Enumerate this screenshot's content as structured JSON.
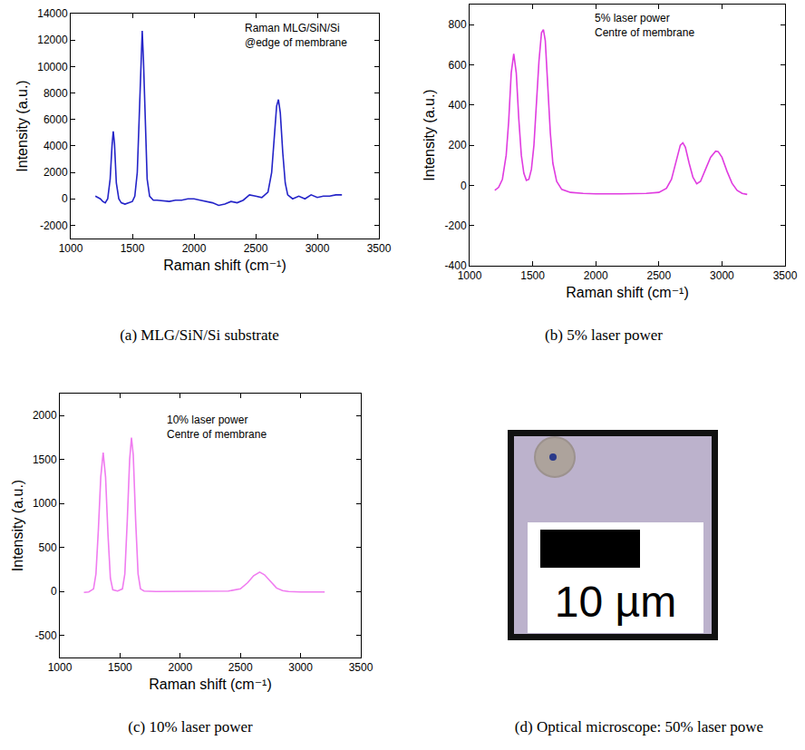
{
  "chart_data": [
    {
      "type": "line",
      "caption": "(a) MLG/SiN/Si substrate",
      "annotations": [
        "Raman MLG/SiN/Si",
        "@edge of membrane"
      ],
      "x_label": "Raman shift (cm⁻¹)",
      "y_label": "Intensity (a.u.)",
      "xlim": [
        1000,
        3500
      ],
      "xticks": [
        1000,
        1500,
        2000,
        2500,
        3000,
        3500
      ],
      "ylim": [
        -3000,
        14000
      ],
      "yticks": [
        -2000,
        0,
        2000,
        4000,
        6000,
        8000,
        10000,
        12000,
        14000
      ],
      "grid": false,
      "color": "#2424c8",
      "x": [
        1200,
        1220,
        1240,
        1260,
        1280,
        1300,
        1320,
        1335,
        1345,
        1355,
        1370,
        1390,
        1410,
        1440,
        1470,
        1500,
        1520,
        1540,
        1555,
        1570,
        1580,
        1590,
        1605,
        1620,
        1640,
        1670,
        1700,
        1750,
        1800,
        1850,
        1900,
        1950,
        2000,
        2050,
        2100,
        2150,
        2200,
        2250,
        2300,
        2350,
        2400,
        2450,
        2500,
        2550,
        2600,
        2630,
        2650,
        2670,
        2685,
        2700,
        2720,
        2740,
        2760,
        2800,
        2850,
        2900,
        2950,
        3000,
        3050,
        3100,
        3150,
        3200
      ],
      "values": [
        200,
        100,
        0,
        -200,
        -300,
        0,
        1500,
        4000,
        5100,
        4200,
        1200,
        0,
        -300,
        -400,
        -300,
        -200,
        200,
        2000,
        6000,
        11000,
        12700,
        10500,
        5000,
        1500,
        200,
        -100,
        -100,
        -150,
        -200,
        -100,
        -100,
        0,
        0,
        -100,
        -200,
        -300,
        -500,
        -400,
        -200,
        -300,
        -100,
        300,
        200,
        100,
        500,
        2000,
        4500,
        7000,
        7500,
        6500,
        3500,
        1200,
        300,
        0,
        200,
        0,
        300,
        100,
        200,
        200,
        300,
        300
      ]
    },
    {
      "type": "line",
      "caption": "(b) 5% laser power",
      "annotations": [
        "5% laser power",
        "Centre of membrane"
      ],
      "x_label": "Raman shift (cm⁻¹)",
      "y_label": "Intensity (a.u.)",
      "xlim": [
        1000,
        3500
      ],
      "xticks": [
        1000,
        1500,
        2000,
        2500,
        3000,
        3500
      ],
      "ylim": [
        -400,
        900
      ],
      "yticks": [
        -400,
        -200,
        0,
        200,
        400,
        600,
        800
      ],
      "grid": false,
      "color": "#e03ce0",
      "x": [
        1200,
        1230,
        1260,
        1290,
        1310,
        1330,
        1350,
        1370,
        1390,
        1410,
        1430,
        1450,
        1470,
        1490,
        1510,
        1530,
        1550,
        1570,
        1585,
        1600,
        1620,
        1640,
        1660,
        1690,
        1730,
        1800,
        1900,
        2000,
        2200,
        2400,
        2500,
        2560,
        2600,
        2640,
        2670,
        2690,
        2710,
        2740,
        2770,
        2800,
        2830,
        2870,
        2910,
        2950,
        2970,
        3000,
        3040,
        3080,
        3120,
        3160,
        3200
      ],
      "values": [
        -25,
        -10,
        30,
        150,
        320,
        560,
        655,
        560,
        330,
        150,
        60,
        25,
        30,
        80,
        200,
        400,
        620,
        760,
        775,
        720,
        500,
        260,
        110,
        20,
        -20,
        -35,
        -40,
        -42,
        -42,
        -40,
        -35,
        -15,
        30,
        130,
        200,
        212,
        190,
        110,
        40,
        8,
        20,
        80,
        140,
        170,
        168,
        140,
        70,
        10,
        -25,
        -40,
        -45
      ]
    },
    {
      "type": "line",
      "caption": "(c) 10% laser power",
      "annotations": [
        "10% laser power",
        "Centre of membrane"
      ],
      "x_label": "Raman shift (cm⁻¹)",
      "y_label": "Intensity (a.u.)",
      "xlim": [
        1000,
        3500
      ],
      "xticks": [
        1000,
        1500,
        2000,
        2500,
        3000,
        3500
      ],
      "ylim": [
        -750,
        2250
      ],
      "yticks": [
        -500,
        0,
        500,
        1000,
        1500,
        2000
      ],
      "grid": false,
      "color": "#f07cf0",
      "x": [
        1200,
        1240,
        1280,
        1300,
        1320,
        1340,
        1360,
        1380,
        1400,
        1420,
        1440,
        1480,
        1520,
        1540,
        1560,
        1580,
        1595,
        1610,
        1630,
        1650,
        1670,
        1700,
        1800,
        2000,
        2200,
        2400,
        2500,
        2560,
        2610,
        2660,
        2700,
        2750,
        2800,
        2850,
        2900,
        3000,
        3200
      ],
      "values": [
        -10,
        -5,
        30,
        200,
        700,
        1300,
        1580,
        1300,
        650,
        150,
        20,
        5,
        30,
        200,
        800,
        1500,
        1750,
        1550,
        800,
        200,
        30,
        5,
        0,
        0,
        0,
        5,
        30,
        100,
        180,
        220,
        190,
        110,
        40,
        10,
        0,
        -5,
        -5
      ]
    }
  ],
  "image": {
    "scale_bar": "10 µm",
    "caption": "(d) Optical microscope: 50% laser powe"
  }
}
